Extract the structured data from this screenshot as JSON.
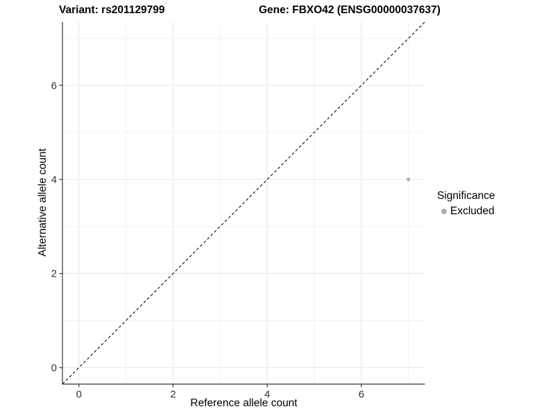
{
  "chart_data": {
    "type": "scatter",
    "title_left": "Variant: rs201129799",
    "title_right": "Gene: FBXO42 (ENSG00000037637)",
    "xlabel": "Reference allele count",
    "ylabel": "Alternative allele count",
    "xlim": [
      -0.35,
      7.35
    ],
    "ylim": [
      -0.35,
      7.35
    ],
    "x_major_ticks": [
      0,
      2,
      4,
      6
    ],
    "y_major_ticks": [
      0,
      2,
      4,
      6
    ],
    "x_minor_ticks": [
      1,
      3,
      5,
      7
    ],
    "y_minor_ticks": [
      1,
      3,
      5,
      7
    ],
    "grid": true,
    "aspect": "equal",
    "reference_line": {
      "type": "identity",
      "style": "dashed",
      "color": "#000000"
    },
    "series": [
      {
        "name": "Excluded",
        "color": "#b3b3b3",
        "marker": "circle",
        "marker_radius": 2.7,
        "points": [
          {
            "x": 7,
            "y": 4
          }
        ]
      }
    ],
    "legend": {
      "title": "Significance",
      "position": "right",
      "items": [
        {
          "label": "Excluded",
          "color": "#adadad",
          "marker": "circle"
        }
      ]
    }
  },
  "style": {
    "background": "#ffffff",
    "axis_color": "#333333",
    "tick_label_color": "#333333",
    "grid_major_color": "#e5e5e5",
    "grid_minor_color": "#f0f0f0",
    "tick_label_size": 15,
    "tick_length": 4.5
  }
}
